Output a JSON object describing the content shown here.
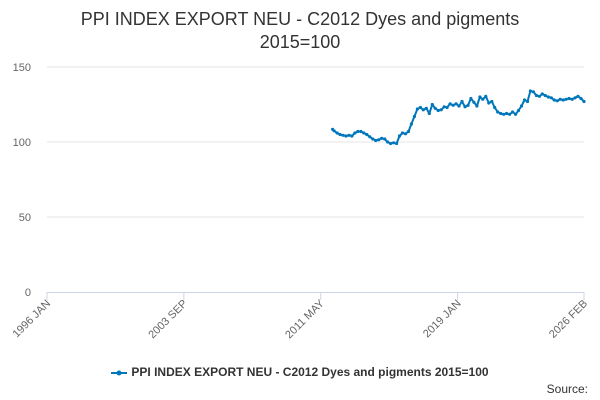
{
  "chart_data": {
    "type": "line",
    "title_line1": "PPI INDEX EXPORT NEU - C2012 Dyes and pigments",
    "title_line2": "2015=100",
    "xlabel": "",
    "ylabel": "",
    "ylim": [
      0,
      150
    ],
    "y_ticks": [
      0,
      50,
      100,
      150
    ],
    "xlim": [
      "1996-01",
      "2026-02"
    ],
    "x_tick_labels": [
      "1996 JAN",
      "2003 SEP",
      "2011 MAY",
      "2019 JAN",
      "2026 FEB"
    ],
    "x_tick_dates": [
      "1996-01",
      "2003-09",
      "2011-05",
      "2019-01",
      "2026-02"
    ],
    "grid": "horizontal",
    "legend_position": "bottom-center",
    "series": [
      {
        "name": "PPI INDEX EXPORT NEU - C2012 Dyes and pigments 2015=100",
        "color": "#0077bb",
        "points": [
          [
            "2012-01",
            108.5
          ],
          [
            "2012-02",
            107.5
          ],
          [
            "2012-04",
            106
          ],
          [
            "2012-06",
            105
          ],
          [
            "2012-08",
            104.5
          ],
          [
            "2012-10",
            104
          ],
          [
            "2012-12",
            104.5
          ],
          [
            "2013-02",
            104
          ],
          [
            "2013-04",
            106
          ],
          [
            "2013-06",
            107
          ],
          [
            "2013-08",
            107
          ],
          [
            "2013-10",
            106
          ],
          [
            "2013-12",
            105
          ],
          [
            "2014-02",
            103.5
          ],
          [
            "2014-04",
            102
          ],
          [
            "2014-06",
            101
          ],
          [
            "2014-08",
            101.5
          ],
          [
            "2014-10",
            102.5
          ],
          [
            "2014-12",
            102
          ],
          [
            "2015-02",
            100
          ],
          [
            "2015-04",
            99
          ],
          [
            "2015-06",
            99.5
          ],
          [
            "2015-08",
            99
          ],
          [
            "2015-10",
            104
          ],
          [
            "2015-12",
            106
          ],
          [
            "2016-02",
            105.5
          ],
          [
            "2016-04",
            107
          ],
          [
            "2016-06",
            112
          ],
          [
            "2016-08",
            117
          ],
          [
            "2016-10",
            122
          ],
          [
            "2016-12",
            123
          ],
          [
            "2017-02",
            121.5
          ],
          [
            "2017-04",
            122.5
          ],
          [
            "2017-06",
            119
          ],
          [
            "2017-08",
            125
          ],
          [
            "2017-10",
            122.5
          ],
          [
            "2017-12",
            121
          ],
          [
            "2018-02",
            121.5
          ],
          [
            "2018-04",
            123.5
          ],
          [
            "2018-06",
            123
          ],
          [
            "2018-08",
            125.5
          ],
          [
            "2018-10",
            124.5
          ],
          [
            "2018-12",
            125.5
          ],
          [
            "2019-02",
            124
          ],
          [
            "2019-04",
            127
          ],
          [
            "2019-06",
            123.5
          ],
          [
            "2019-08",
            124.5
          ],
          [
            "2019-10",
            129
          ],
          [
            "2019-12",
            126.5
          ],
          [
            "2020-02",
            124
          ],
          [
            "2020-04",
            130
          ],
          [
            "2020-06",
            128.5
          ],
          [
            "2020-08",
            130.5
          ],
          [
            "2020-10",
            126
          ],
          [
            "2020-12",
            127
          ],
          [
            "2021-02",
            123
          ],
          [
            "2021-04",
            120
          ],
          [
            "2021-06",
            119
          ],
          [
            "2021-08",
            118.5
          ],
          [
            "2021-10",
            119
          ],
          [
            "2021-12",
            118.5
          ],
          [
            "2022-02",
            120
          ],
          [
            "2022-04",
            118.5
          ],
          [
            "2022-06",
            121
          ],
          [
            "2022-08",
            124
          ],
          [
            "2022-10",
            128
          ],
          [
            "2022-12",
            127
          ],
          [
            "2023-02",
            134
          ],
          [
            "2023-04",
            133.5
          ],
          [
            "2023-06",
            131
          ],
          [
            "2023-08",
            130.5
          ],
          [
            "2023-10",
            132
          ],
          [
            "2023-12",
            131
          ],
          [
            "2024-02",
            130
          ],
          [
            "2024-04",
            129.5
          ],
          [
            "2024-06",
            128
          ],
          [
            "2024-08",
            127.5
          ],
          [
            "2024-10",
            128.5
          ],
          [
            "2024-12",
            128
          ],
          [
            "2025-02",
            128.5
          ],
          [
            "2025-04",
            129
          ],
          [
            "2025-06",
            128.5
          ],
          [
            "2025-08",
            129.5
          ],
          [
            "2025-10",
            130.5
          ],
          [
            "2025-12",
            129
          ],
          [
            "2026-02",
            127
          ]
        ]
      }
    ]
  },
  "credits": "Source:"
}
